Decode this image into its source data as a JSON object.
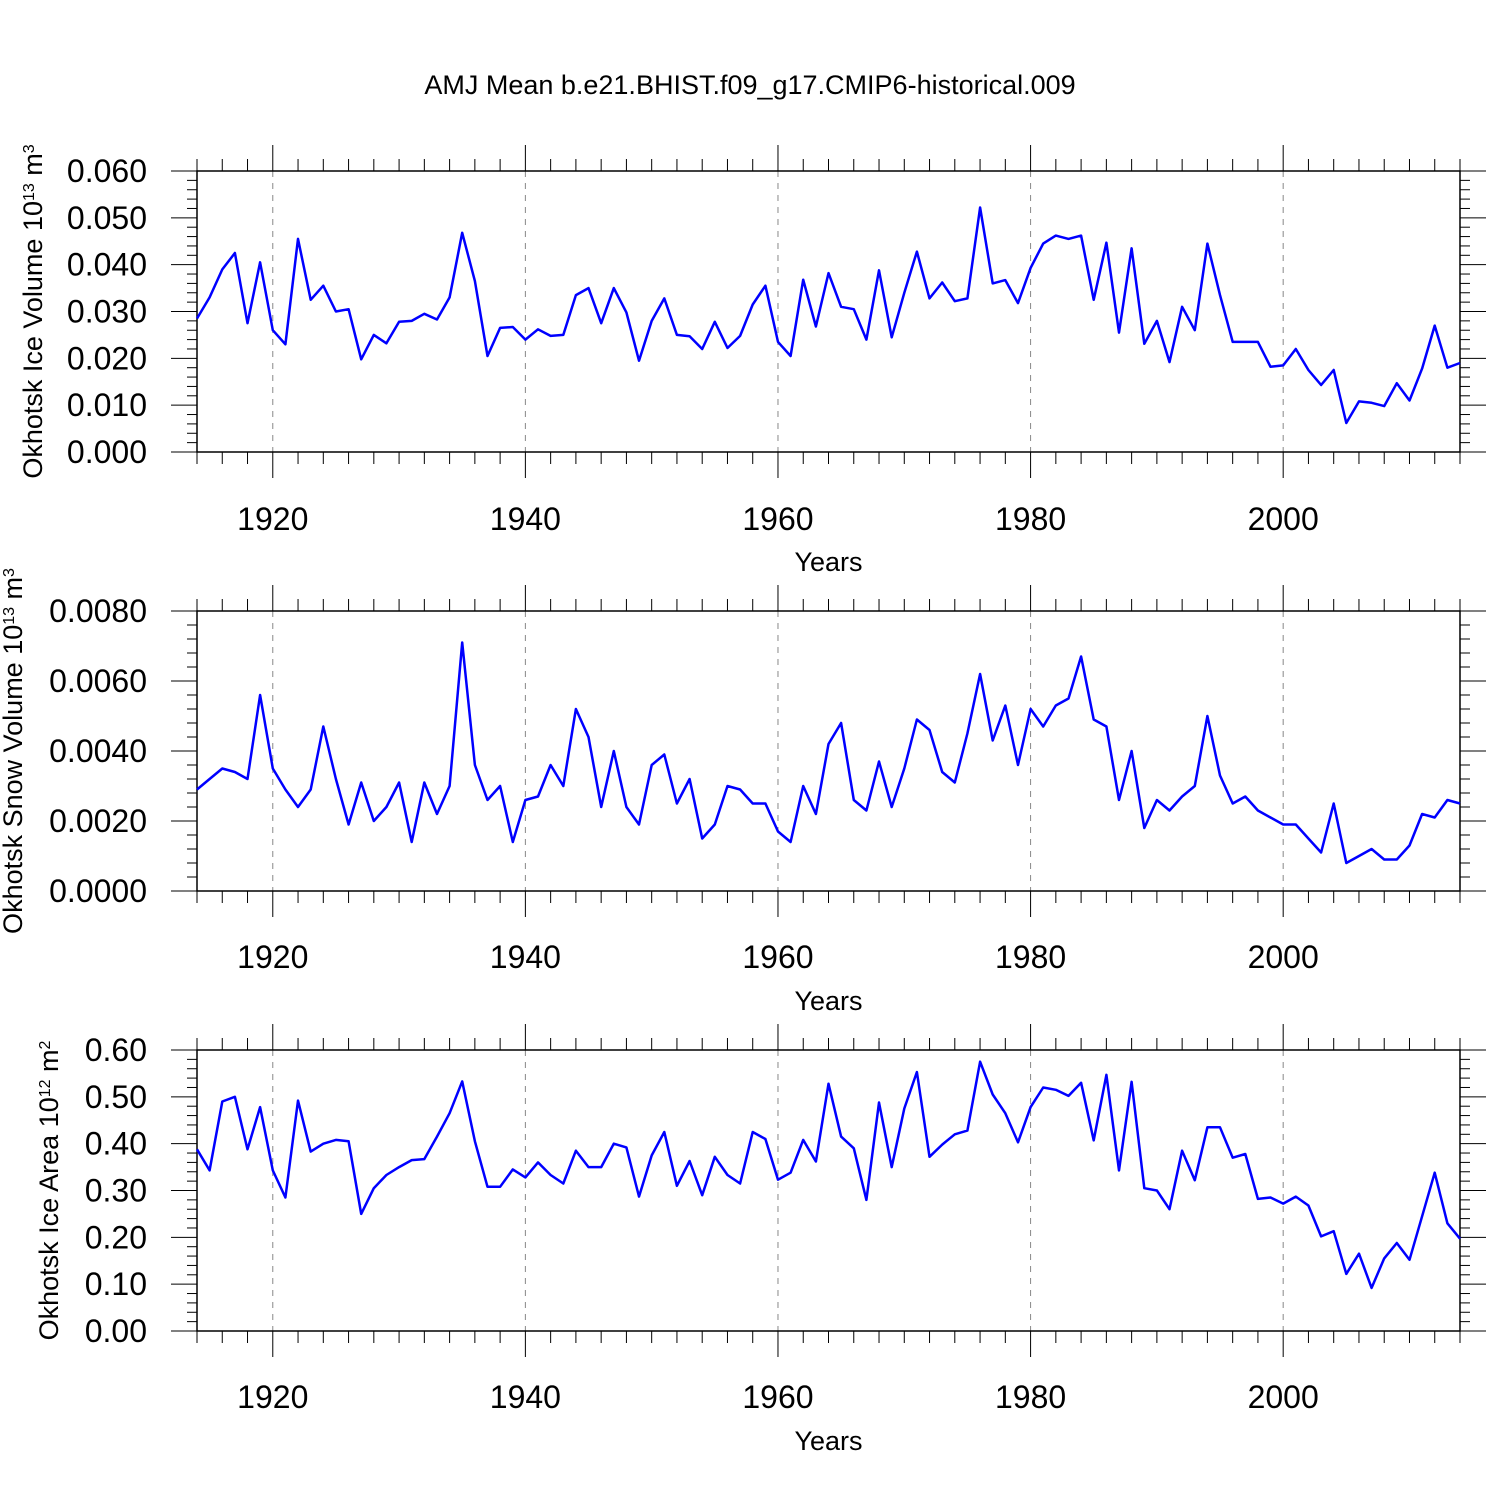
{
  "title": "AMJ Mean b.e21.BHIST.f09_g17.CMIP6-historical.009",
  "line_color": "#0000ff",
  "chart_data": [
    {
      "type": "line",
      "xlabel": "Years",
      "ylabel": {
        "main": "Okhotsk Ice Volume 10",
        "exp": "13",
        "unit": " m",
        "unit_exp": "3"
      },
      "xlim": [
        1914,
        2014
      ],
      "ylim": [
        0,
        0.06
      ],
      "x_ticks": [
        "1920",
        "1940",
        "1960",
        "1980",
        "2000"
      ],
      "y_ticks": [
        "0.000",
        "0.010",
        "0.020",
        "0.030",
        "0.040",
        "0.050",
        "0.060"
      ],
      "series": [
        {
          "x_start": 1914,
          "values": [
            0.0285,
            0.033,
            0.039,
            0.0425,
            0.0275,
            0.0405,
            0.026,
            0.023,
            0.0455,
            0.0325,
            0.0355,
            0.03,
            0.0305,
            0.0198,
            0.025,
            0.0232,
            0.0278,
            0.028,
            0.0295,
            0.0283,
            0.033,
            0.0468,
            0.0365,
            0.0205,
            0.0265,
            0.0267,
            0.024,
            0.0262,
            0.0248,
            0.025,
            0.0335,
            0.035,
            0.0275,
            0.035,
            0.0298,
            0.0195,
            0.028,
            0.0328,
            0.025,
            0.0247,
            0.022,
            0.0278,
            0.0222,
            0.0248,
            0.0315,
            0.0355,
            0.0235,
            0.0205,
            0.0368,
            0.0268,
            0.0382,
            0.031,
            0.0305,
            0.024,
            0.0388,
            0.0245,
            0.034,
            0.0428,
            0.0328,
            0.0362,
            0.0322,
            0.0328,
            0.0522,
            0.036,
            0.0367,
            0.0318,
            0.0393,
            0.0445,
            0.0462,
            0.0455,
            0.0462,
            0.0325,
            0.0447,
            0.0255,
            0.0435,
            0.0231,
            0.028,
            0.0192,
            0.031,
            0.026,
            0.0445,
            0.0335,
            0.0235,
            0.0235,
            0.0235,
            0.0182,
            0.0185,
            0.022,
            0.0175,
            0.0143,
            0.0175,
            0.0062,
            0.0108,
            0.0105,
            0.0098,
            0.0147,
            0.011,
            0.0178,
            0.027,
            0.018,
            0.019
          ]
        }
      ]
    },
    {
      "type": "line",
      "xlabel": "Years",
      "ylabel": {
        "main": "Okhotsk Snow Volume 10",
        "exp": "13",
        "unit": " m",
        "unit_exp": "3"
      },
      "xlim": [
        1914,
        2014
      ],
      "ylim": [
        0,
        0.008
      ],
      "x_ticks": [
        "1920",
        "1940",
        "1960",
        "1980",
        "2000"
      ],
      "y_ticks": [
        "0.0000",
        "0.0020",
        "0.0040",
        "0.0060",
        "0.0080"
      ],
      "series": [
        {
          "x_start": 1914,
          "values": [
            0.0029,
            0.0032,
            0.0035,
            0.0034,
            0.0032,
            0.0056,
            0.0035,
            0.0029,
            0.0024,
            0.0029,
            0.0047,
            0.0032,
            0.0019,
            0.0031,
            0.002,
            0.0024,
            0.0031,
            0.0014,
            0.0031,
            0.0022,
            0.003,
            0.0071,
            0.0036,
            0.0026,
            0.003,
            0.0014,
            0.0026,
            0.0027,
            0.0036,
            0.003,
            0.0052,
            0.0044,
            0.0024,
            0.004,
            0.0024,
            0.0019,
            0.0036,
            0.0039,
            0.0025,
            0.0032,
            0.0015,
            0.0019,
            0.003,
            0.0029,
            0.0025,
            0.0025,
            0.0017,
            0.0014,
            0.003,
            0.0022,
            0.0042,
            0.0048,
            0.0026,
            0.0023,
            0.0037,
            0.0024,
            0.0035,
            0.0049,
            0.0046,
            0.0034,
            0.0031,
            0.0045,
            0.0062,
            0.0043,
            0.0053,
            0.0036,
            0.0052,
            0.0047,
            0.0053,
            0.0055,
            0.0067,
            0.0049,
            0.0047,
            0.0026,
            0.004,
            0.0018,
            0.0026,
            0.0023,
            0.0027,
            0.003,
            0.005,
            0.0033,
            0.0025,
            0.0027,
            0.0023,
            0.0021,
            0.0019,
            0.0019,
            0.0015,
            0.0011,
            0.0025,
            0.0008,
            0.001,
            0.0012,
            0.0009,
            0.0009,
            0.0013,
            0.0022,
            0.0021,
            0.0026,
            0.0025
          ]
        }
      ]
    },
    {
      "type": "line",
      "xlabel": "Years",
      "ylabel": {
        "main": "Okhotsk Ice Area 10",
        "exp": "12",
        "unit": " m",
        "unit_exp": "2"
      },
      "xlim": [
        1914,
        2014
      ],
      "ylim": [
        0,
        0.6
      ],
      "x_ticks": [
        "1920",
        "1940",
        "1960",
        "1980",
        "2000"
      ],
      "y_ticks": [
        "0.00",
        "0.10",
        "0.20",
        "0.30",
        "0.40",
        "0.50",
        "0.60"
      ],
      "series": [
        {
          "x_start": 1914,
          "values": [
            0.388,
            0.343,
            0.49,
            0.5,
            0.388,
            0.478,
            0.343,
            0.285,
            0.492,
            0.383,
            0.4,
            0.408,
            0.405,
            0.25,
            0.305,
            0.333,
            0.35,
            0.365,
            0.367,
            0.415,
            0.465,
            0.533,
            0.405,
            0.308,
            0.308,
            0.345,
            0.328,
            0.36,
            0.333,
            0.315,
            0.385,
            0.35,
            0.35,
            0.4,
            0.392,
            0.287,
            0.375,
            0.425,
            0.31,
            0.363,
            0.29,
            0.372,
            0.333,
            0.315,
            0.425,
            0.41,
            0.323,
            0.338,
            0.408,
            0.362,
            0.528,
            0.415,
            0.39,
            0.28,
            0.488,
            0.35,
            0.475,
            0.553,
            0.372,
            0.398,
            0.42,
            0.428,
            0.575,
            0.505,
            0.465,
            0.403,
            0.478,
            0.52,
            0.515,
            0.502,
            0.53,
            0.407,
            0.547,
            0.343,
            0.532,
            0.305,
            0.3,
            0.26,
            0.385,
            0.322,
            0.435,
            0.435,
            0.37,
            0.378,
            0.282,
            0.285,
            0.272,
            0.287,
            0.268,
            0.202,
            0.213,
            0.122,
            0.165,
            0.092,
            0.155,
            0.188,
            0.152,
            0.245,
            0.338,
            0.23,
            0.197
          ]
        }
      ]
    }
  ]
}
